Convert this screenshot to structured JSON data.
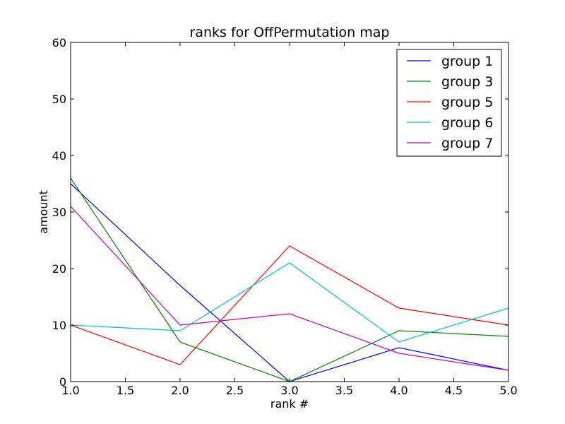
{
  "chart_data": {
    "type": "line",
    "title": "ranks for OffPermutation map",
    "xlabel": "rank #",
    "ylabel": "amount",
    "xlim": [
      1.0,
      5.0
    ],
    "ylim": [
      0,
      60
    ],
    "xticks": [
      "1.0",
      "1.5",
      "2.0",
      "2.5",
      "3.0",
      "3.5",
      "4.0",
      "4.5",
      "5.0"
    ],
    "yticks": [
      "0",
      "10",
      "20",
      "30",
      "40",
      "50",
      "60"
    ],
    "grid": false,
    "legend_position": "top-right",
    "x": [
      1,
      2,
      3,
      4,
      5
    ],
    "series": [
      {
        "name": "group 1",
        "color": "#0000ff",
        "values": [
          35,
          17,
          0,
          6,
          2
        ]
      },
      {
        "name": "group 3",
        "color": "#008000",
        "values": [
          36,
          7,
          0,
          9,
          8
        ]
      },
      {
        "name": "group 5",
        "color": "#ff0000",
        "values": [
          10,
          3,
          24,
          13,
          10
        ]
      },
      {
        "name": "group 6",
        "color": "#00bfbf",
        "values": [
          10,
          9,
          21,
          7,
          13
        ]
      },
      {
        "name": "group 7",
        "color": "#bf00bf",
        "values": [
          31,
          10,
          12,
          5,
          2
        ]
      }
    ]
  }
}
